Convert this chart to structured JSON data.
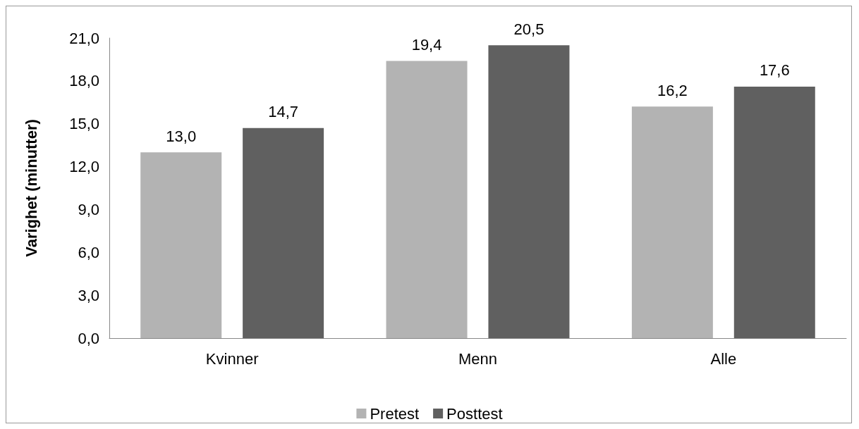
{
  "chart_data": {
    "type": "bar",
    "ylabel": "Varighet (minutter)",
    "categories": [
      "Kvinner",
      "Menn",
      "Alle"
    ],
    "series": [
      {
        "name": "Pretest",
        "color": "#b3b3b3",
        "values": [
          13.0,
          19.4,
          16.2
        ],
        "value_labels": [
          "13,0",
          "19,4",
          "16,2"
        ]
      },
      {
        "name": "Posttest",
        "color": "#606060",
        "values": [
          14.7,
          20.5,
          17.6
        ],
        "value_labels": [
          "14,7",
          "20,5",
          "17,6"
        ]
      }
    ],
    "ylim": [
      0,
      21
    ],
    "yticks": [
      {
        "value": 0,
        "label": "0,0"
      },
      {
        "value": 3,
        "label": "3,0"
      },
      {
        "value": 6,
        "label": "6,0"
      },
      {
        "value": 9,
        "label": "9,0"
      },
      {
        "value": 12,
        "label": "12,0"
      },
      {
        "value": 15,
        "label": "15,0"
      },
      {
        "value": 18,
        "label": "18,0"
      },
      {
        "value": 21,
        "label": "21,0"
      }
    ],
    "grid": false,
    "legend": "bottom"
  }
}
